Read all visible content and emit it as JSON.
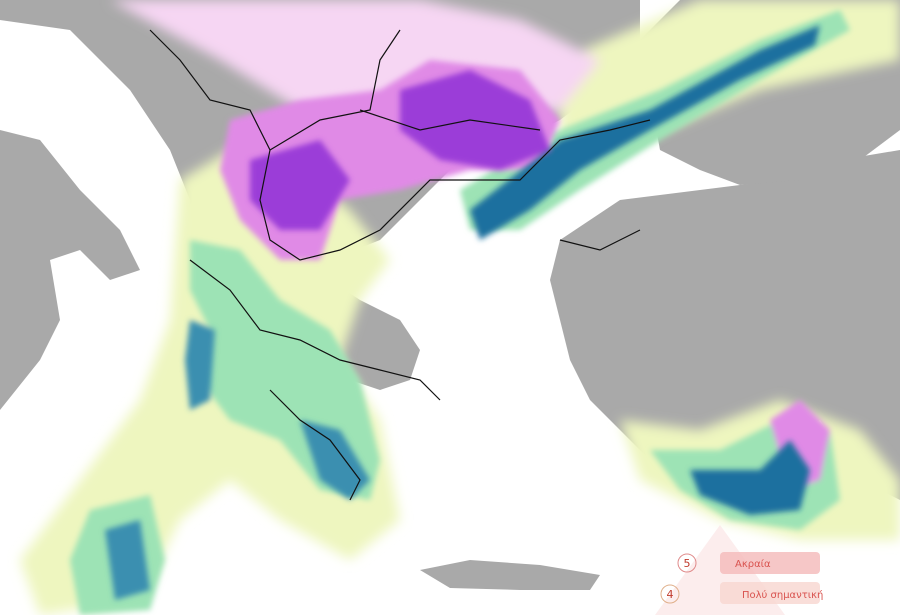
{
  "legend": {
    "items": [
      {
        "level": "5",
        "label": "Ακραία"
      },
      {
        "level": "4",
        "label": "Πολύ σημαντική"
      }
    ]
  }
}
